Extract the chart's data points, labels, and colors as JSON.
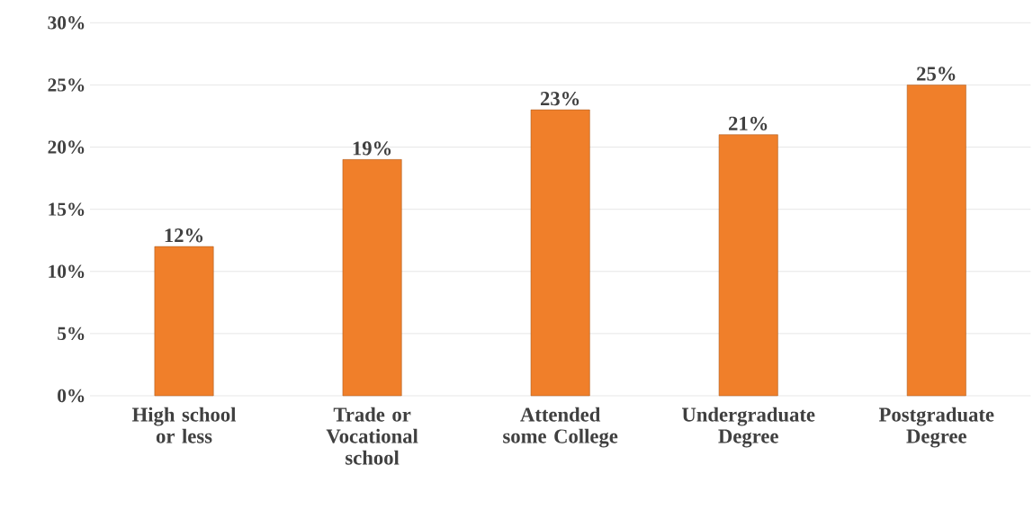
{
  "chart_data": {
    "type": "bar",
    "categories": [
      "High school or less",
      "Trade or Vocational school",
      "Attended some College",
      "Undergraduate Degree",
      "Postgraduate Degree"
    ],
    "values": [
      12,
      19,
      23,
      21,
      25
    ],
    "value_labels": [
      "12%",
      "19%",
      "23%",
      "21%",
      "25%"
    ],
    "color": "#f07f2a",
    "ylim": [
      0,
      30
    ],
    "yticks": [
      {
        "value": 0,
        "label": "0%"
      },
      {
        "value": 5,
        "label": "5%"
      },
      {
        "value": 10,
        "label": "10%"
      },
      {
        "value": 15,
        "label": "15%"
      },
      {
        "value": 20,
        "label": "20%"
      },
      {
        "value": 25,
        "label": "25%"
      },
      {
        "value": 30,
        "label": "30%"
      }
    ],
    "grid": "y"
  }
}
